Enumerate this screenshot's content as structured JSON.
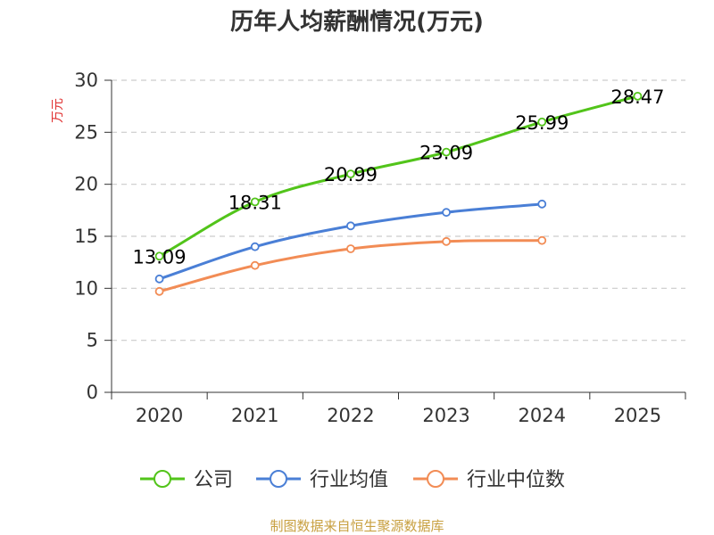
{
  "chart_data": {
    "type": "line",
    "title": "历年人均薪酬情况(万元)",
    "xlabel": "",
    "ylabel": "万元",
    "categories": [
      "2020",
      "2021",
      "2022",
      "2023",
      "2024",
      "2025"
    ],
    "ylim": [
      0,
      30
    ],
    "yticks": [
      0,
      5,
      10,
      15,
      20,
      25,
      30
    ],
    "grid": true,
    "legend_position": "bottom",
    "series": [
      {
        "name": "公司",
        "color": "#52c41a",
        "values": [
          13.09,
          18.31,
          20.99,
          23.09,
          25.99,
          28.47
        ],
        "labels": [
          "13.09",
          "18.31",
          "20.99",
          "23.09",
          "25.99",
          "28.47"
        ]
      },
      {
        "name": "行业均值",
        "color": "#4a7fd6",
        "values": [
          10.9,
          14.0,
          16.0,
          17.3,
          18.1,
          null
        ]
      },
      {
        "name": "行业中位数",
        "color": "#f28c55",
        "values": [
          9.7,
          12.2,
          13.8,
          14.5,
          14.6,
          null
        ]
      }
    ],
    "source": "制图数据来自恒生聚源数据库"
  }
}
